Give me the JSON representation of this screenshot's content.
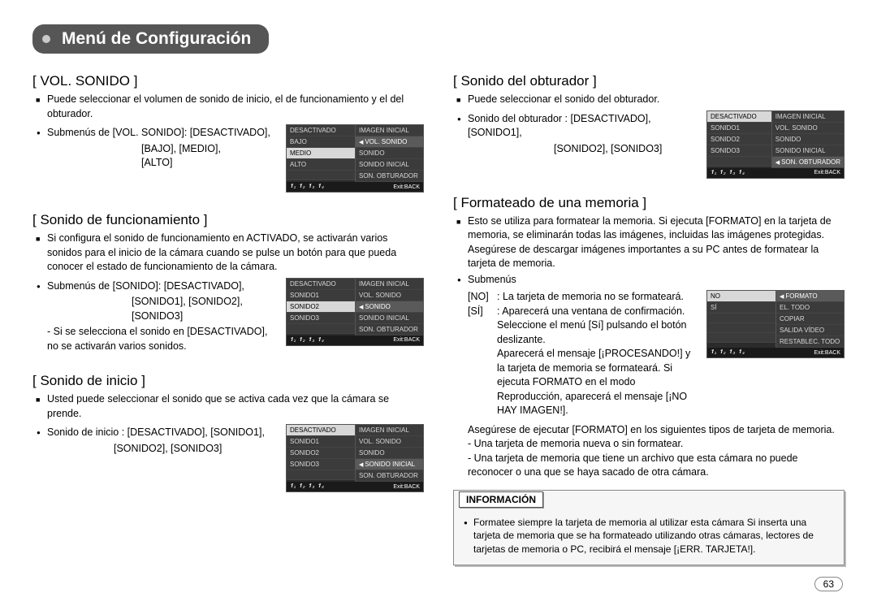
{
  "page": {
    "title": "Menú de Configuración",
    "pageNumber": "63"
  },
  "vol": {
    "head": "[ VOL. SONIDO ]",
    "p1": "Puede seleccionar el volumen de sonido de inicio, el de funcionamiento y el del obturador.",
    "p2a": "Submenús de [VOL. SONIDO]: [DESACTIVADO],",
    "p2b": "[BAJO], [MEDIO],",
    "p2c": "[ALTO]",
    "menuLeft": [
      "DESACTIVADO",
      "BAJO",
      "MEDIO",
      "ALTO",
      ""
    ],
    "menuRight": [
      "IMAGEN INICIAL",
      "VOL. SONIDO",
      "SONIDO",
      "SONIDO INICIAL",
      "SON. OBTURADOR"
    ],
    "selLeft": 2,
    "selRight": 1,
    "foot": "Exit:BACK"
  },
  "func": {
    "head": "[ Sonido de funcionamiento ]",
    "p1": "Si configura el sonido de funcionamiento en ACTIVADO, se activarán varios sonidos para el inicio de la cámara cuando se pulse un botón para que pueda conocer el estado de funcionamiento de la cámara.",
    "p2a": "Submenús de [SONIDO]: [DESACTIVADO],",
    "p2b": "[SONIDO1], [SONIDO2],",
    "p2c": "[SONIDO3]",
    "p3": "- Si se selecciona el sonido en [DESACTIVADO], no se activarán varios sonidos.",
    "menuLeft": [
      "DESACTIVADO",
      "SONIDO1",
      "SONIDO2",
      "SONIDO3",
      ""
    ],
    "menuRight": [
      "IMAGEN INICIAL",
      "VOL. SONIDO",
      "SONIDO",
      "SONIDO INICIAL",
      "SON. OBTURADOR"
    ],
    "selLeft": 2,
    "selRight": 2,
    "foot": "Exit:BACK"
  },
  "inicio": {
    "head": "[ Sonido de inicio ]",
    "p1": "Usted puede seleccionar el sonido que se activa cada vez que la cámara se prende.",
    "p2a": "Sonido de inicio : [DESACTIVADO], [SONIDO1],",
    "p2b": "[SONIDO2], [SONIDO3]",
    "menuLeft": [
      "DESACTIVADO",
      "SONIDO1",
      "SONIDO2",
      "SONIDO3",
      ""
    ],
    "menuRight": [
      "IMAGEN INICIAL",
      "VOL. SONIDO",
      "SONIDO",
      "SONIDO INICIAL",
      "SON. OBTURADOR"
    ],
    "selLeft": 0,
    "selRight": 3,
    "foot": "Exit:BACK"
  },
  "obt": {
    "head": "[ Sonido del obturador ]",
    "p1": "Puede seleccionar el sonido del obturador.",
    "p2a": "Sonido del obturador : [DESACTIVADO], [SONIDO1],",
    "p2b": "[SONIDO2], [SONIDO3]",
    "menuLeft": [
      "DESACTIVADO",
      "SONIDO1",
      "SONIDO2",
      "SONIDO3",
      ""
    ],
    "menuRight": [
      "IMAGEN INICIAL",
      "VOL. SONIDO",
      "SONIDO",
      "SONIDO INICIAL",
      "SON. OBTURADOR"
    ],
    "selLeft": 0,
    "selRight": 4,
    "foot": "Exit:BACK"
  },
  "fmt": {
    "head": "[ Formateado de una memoria ]",
    "p1": "Esto se utiliza para formatear la memoria. Si ejecuta [FORMATO] en la tarjeta de memoria, se eliminarán todas las imágenes, incluidas las imágenes protegidas. Asegúrese de descargar imágenes importantes a su PC antes de formatear la tarjeta de memoria.",
    "p2": "Submenús",
    "noK": "[NO]",
    "noV": ": La tarjeta de memoria no se formateará.",
    "siK": "[SÍ]",
    "siV": ": Aparecerá una ventana de confirmación. Seleccione el menú [Sí] pulsando el botón deslizante.",
    "siV2": "Aparecerá el mensaje [¡PROCESANDO!] y la tarjeta de memoria se formateará. Si ejecuta FORMATO en el modo Reproducción, aparecerá el mensaje [¡NO HAY IMAGEN!].",
    "p3": "Asegúrese de ejecutar [FORMATO] en los siguientes tipos de tarjeta de memoria.",
    "p4": "- Una tarjeta de memoria nueva o sin formatear.",
    "p5": "- Una tarjeta de memoria que tiene un archivo que esta cámara no puede reconocer o una que se haya sacado de otra cámara.",
    "menuLeft": [
      "NO",
      "SÍ",
      "",
      "",
      ""
    ],
    "menuRight": [
      "FORMATO",
      "EL. TODO",
      "COPIAR",
      "SALIDA VÍDEO",
      "RESTABLEC. TODO"
    ],
    "selLeft": 0,
    "selRight": 0,
    "foot": "Exit:BACK"
  },
  "info": {
    "label": "INFORMACIÓN",
    "text": "Formatee siempre la tarjeta de memoria al utilizar esta cámara Si inserta una tarjeta de memoria que se ha formateado utilizando otras cámaras, lectores de tarjetas de memoria o PC, recibirá el mensaje [¡ERR. TARJETA!]."
  },
  "footIcons": "𝟏₁ 𝟏₂ 𝟏₃ 𝟏₄"
}
